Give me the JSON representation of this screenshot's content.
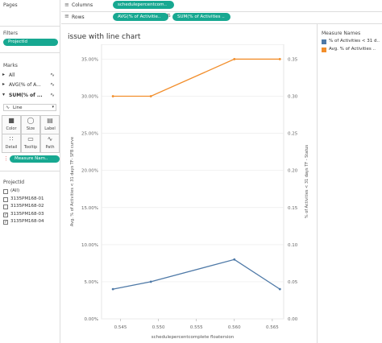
{
  "shelves": {
    "pages_label": "Pages",
    "columns_label": "Columns",
    "rows_label": "Rows",
    "columns_pill": "schedulepercentcom..",
    "rows_pills": [
      "AVG(% of Activitie..",
      "SUM(% of Activities .."
    ]
  },
  "filters": {
    "title": "Filters",
    "pill": "ProjectId"
  },
  "marks": {
    "title": "Marks",
    "rows": [
      {
        "label": "All",
        "icon": "line-chart-icon"
      },
      {
        "label": "AVG(% of A...",
        "icon": "line-chart-icon"
      },
      {
        "label": "SUM(% of ...",
        "icon": "line-chart-icon"
      }
    ],
    "mark_type": "Line",
    "buttons": [
      "Color",
      "Size",
      "Label",
      "Detail",
      "Tooltip",
      "Path"
    ],
    "color_pill": "Measure Nam.."
  },
  "projectid_filter": {
    "title": "ProjectId",
    "items": [
      {
        "label": "(All)",
        "checked": false
      },
      {
        "label": "3135PM168-01",
        "checked": false
      },
      {
        "label": "3135PM168-02",
        "checked": false
      },
      {
        "label": "3135PM168-03",
        "checked": true
      },
      {
        "label": "3135PM168-04",
        "checked": true
      }
    ]
  },
  "legend": {
    "title": "Measure Names",
    "items": [
      {
        "label": "% of Activities < 31 d..",
        "color": "#4e79a7"
      },
      {
        "label": "Avg. % of Activities ..",
        "color": "#f28e2b"
      }
    ]
  },
  "chart_data": {
    "type": "line",
    "title": "issue with line chart",
    "xlabel": "schedulepercentcomplete floatersion",
    "ylabel_left": "Avg. % of Activities < 31 days TF- SFB curve",
    "ylabel_right": "% of Activities < 31 days TF - Status",
    "x": [
      0.544,
      0.549,
      0.56,
      0.566
    ],
    "xlim": [
      0.5425,
      0.5665
    ],
    "xticks": [
      "0.545",
      "0.550",
      "0.555",
      "0.560",
      "0.565"
    ],
    "ylim": [
      0,
      0.37
    ],
    "yticks_left": [
      "0.00%",
      "5.00%",
      "10.00%",
      "15.00%",
      "20.00%",
      "25.00%",
      "30.00%",
      "35.00%"
    ],
    "yticks_right": [
      "0.00",
      "0.05",
      "0.10",
      "0.15",
      "0.20",
      "0.25",
      "0.30",
      "0.35"
    ],
    "series": [
      {
        "name": "Avg. % of Activities ..",
        "color": "#f28e2b",
        "values": [
          0.3,
          0.3,
          0.35,
          0.35
        ]
      },
      {
        "name": "% of Activities < 31 d..",
        "color": "#4e79a7",
        "values": [
          0.04,
          0.05,
          0.08,
          0.04
        ]
      }
    ],
    "grid": "horizontal",
    "legend_position": "right"
  }
}
